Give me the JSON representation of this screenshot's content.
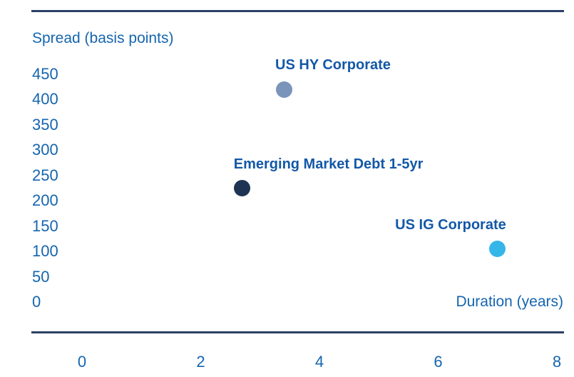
{
  "colors": {
    "background": "#FFFFFF",
    "text_blue": "#1565AF",
    "point_label_blue": "#1358A7",
    "rule_navy": "#2B4164"
  },
  "chart_data": {
    "type": "scatter",
    "title": "",
    "xlabel": "Duration (years)",
    "ylabel": "Spread (basis points)",
    "xlim": [
      0,
      8
    ],
    "ylim": [
      0,
      450
    ],
    "x_ticks": [
      0,
      2,
      4,
      6,
      8
    ],
    "y_ticks": [
      450,
      400,
      350,
      300,
      250,
      200,
      150,
      100,
      50,
      0
    ],
    "grid": false,
    "legend": "none (points labeled directly)",
    "points": [
      {
        "label": "US HY Corporate",
        "x": 3.4,
        "y": 420,
        "color": "#7A94BA",
        "label_anchor": "start"
      },
      {
        "label": "Emerging Market Debt 1-5yr",
        "x": 2.7,
        "y": 225,
        "color": "#1F3353",
        "label_anchor": "start"
      },
      {
        "label": "US IG Corporate",
        "x": 7.0,
        "y": 105,
        "color": "#35B6E9",
        "label_anchor": "end"
      }
    ]
  }
}
